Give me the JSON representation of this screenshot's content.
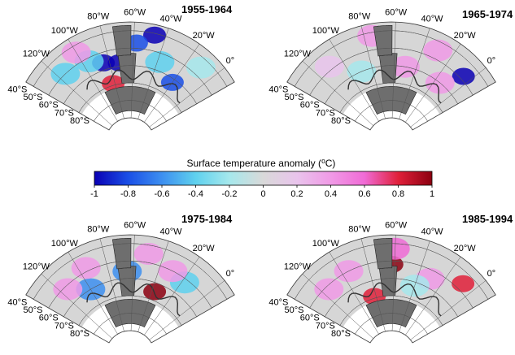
{
  "panels": [
    {
      "title": "1955-1964",
      "lon_labels": [
        "120°W",
        "100°W",
        "80°W",
        "60°W",
        "40°W",
        "20°W",
        "0°"
      ],
      "lat_labels": [
        "40°S",
        "50°S",
        "60°S",
        "70°S",
        "80°S"
      ],
      "anomalies": [
        {
          "lon": -47,
          "lat": -41,
          "value": -0.9
        },
        {
          "lon": -58,
          "lat": -47,
          "value": -0.8
        },
        {
          "lon": -85,
          "lat": -56,
          "value": -0.9
        },
        {
          "lon": -72,
          "lat": -58,
          "value": -0.95
        },
        {
          "lon": -95,
          "lat": -52,
          "value": -0.5
        },
        {
          "lon": -20,
          "lat": -62,
          "value": -0.85
        },
        {
          "lon": -38,
          "lat": -55,
          "value": -0.4
        },
        {
          "lon": -115,
          "lat": -50,
          "value": -0.4
        },
        {
          "lon": -100,
          "lat": -44,
          "value": 0.3
        },
        {
          "lon": -82,
          "lat": -69,
          "value": 0.8
        },
        {
          "lon": -10,
          "lat": -45,
          "value": -0.3
        }
      ]
    },
    {
      "title": "1965-1974",
      "lon_labels": [
        "120°W",
        "100°W",
        "80°W",
        "60°W",
        "40°W",
        "20°W",
        "0°"
      ],
      "lat_labels": [
        "40°S",
        "50°S",
        "60°S",
        "70°S",
        "80°S"
      ],
      "anomalies": [
        {
          "lon": -5,
          "lat": -48,
          "value": -0.9
        },
        {
          "lon": -30,
          "lat": -45,
          "value": 0.45
        },
        {
          "lon": -75,
          "lat": -42,
          "value": 0.3
        },
        {
          "lon": -90,
          "lat": -60,
          "value": -0.3
        },
        {
          "lon": -50,
          "lat": -60,
          "value": 0.35
        },
        {
          "lon": -15,
          "lat": -60,
          "value": 0.3
        },
        {
          "lon": -110,
          "lat": -48,
          "value": 0.25
        }
      ]
    },
    {
      "title": "1975-1984",
      "lon_labels": [
        "120°W",
        "100°W",
        "80°W",
        "60°W",
        "40°W",
        "20°W",
        "0°"
      ],
      "lat_labels": [
        "40°S",
        "50°S",
        "60°S",
        "70°S",
        "80°S"
      ],
      "anomalies": [
        {
          "lon": -37,
          "lat": -65,
          "value": 0.95
        },
        {
          "lon": -65,
          "lat": -56,
          "value": -0.7
        },
        {
          "lon": -18,
          "lat": -52,
          "value": -0.5
        },
        {
          "lon": -50,
          "lat": -45,
          "value": 0.4
        },
        {
          "lon": -100,
          "lat": -60,
          "value": -0.7
        },
        {
          "lon": -95,
          "lat": -48,
          "value": 0.35
        },
        {
          "lon": -115,
          "lat": -52,
          "value": 0.3
        },
        {
          "lon": -30,
          "lat": -50,
          "value": 0.3
        }
      ]
    },
    {
      "title": "1985-1994",
      "lon_labels": [
        "120°W",
        "100°W",
        "80°W",
        "60°W",
        "40°W",
        "20°W",
        "0°"
      ],
      "lat_labels": [
        "40°S",
        "50°S",
        "60°S",
        "70°S",
        "80°S"
      ],
      "anomalies": [
        {
          "lon": -62,
          "lat": -52,
          "value": 0.9
        },
        {
          "lon": -8,
          "lat": -46,
          "value": 0.85
        },
        {
          "lon": -82,
          "lat": -69,
          "value": 0.85
        },
        {
          "lon": -60,
          "lat": -43,
          "value": 0.6
        },
        {
          "lon": -95,
          "lat": -50,
          "value": 0.35
        },
        {
          "lon": -30,
          "lat": -55,
          "value": 0.35
        },
        {
          "lon": -115,
          "lat": -52,
          "value": 0.3
        },
        {
          "lon": -40,
          "lat": -62,
          "value": -0.3
        }
      ]
    }
  ],
  "colorbar": {
    "title": "Surface temperature anomaly (⁰C)",
    "ticks": [
      "-1",
      "-0.8",
      "-0.6",
      "-0.4",
      "-0.2",
      "0",
      "0.2",
      "0.4",
      "0.6",
      "0.8",
      "1"
    ],
    "colors": [
      "#0a00b4",
      "#1a4fe6",
      "#3d8ff0",
      "#5fd1ee",
      "#a6e8ec",
      "#d9d9d9",
      "#e9c4ec",
      "#f09ae6",
      "#f06bd6",
      "#e0203a",
      "#8c0010"
    ]
  }
}
